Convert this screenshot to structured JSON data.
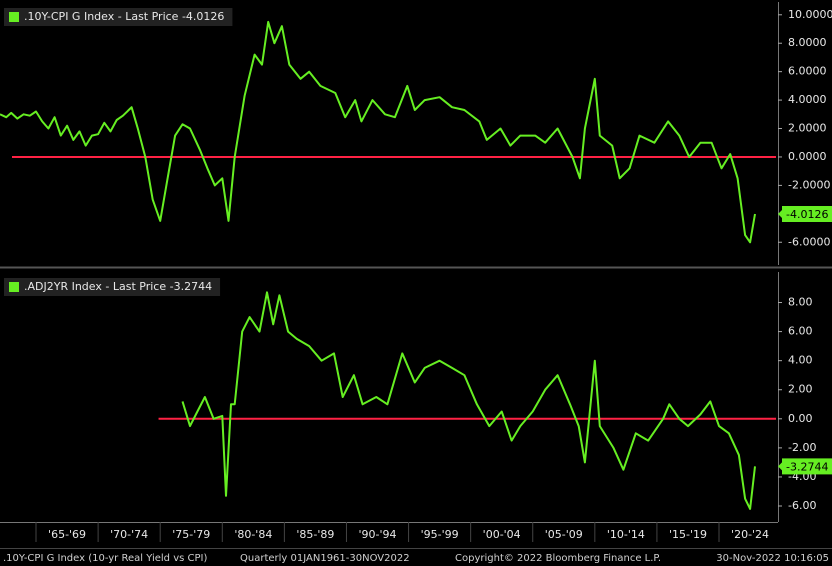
{
  "chart_data": [
    {
      "type": "line",
      "last_price_label": "- Last Price",
      "series": [
        {
          "name": ".10Y-CPI G Index",
          "color": "#66ee22",
          "x": [
            1962.1,
            1962.6,
            1963,
            1963.5,
            1964,
            1964.5,
            1965,
            1965.5,
            1966,
            1966.5,
            1967,
            1967.5,
            1968,
            1968.5,
            1969,
            1969.5,
            1970,
            1970.5,
            1971,
            1971.5,
            1972,
            1972.7,
            1973.2,
            1973.8,
            1974.4,
            1975,
            1975.6,
            1976.2,
            1976.8,
            1977.4,
            1978.2,
            1978.8,
            1979.4,
            1980,
            1980.5,
            1981,
            1981.8,
            1982.6,
            1983.2,
            1983.7,
            1984.2,
            1984.8,
            1985.4,
            1986.3,
            1987,
            1987.9,
            1989.1,
            1989.9,
            1990.7,
            1991.2,
            1992.1,
            1993.1,
            1993.9,
            1994.9,
            1995.5,
            1996.3,
            1997.5,
            1998.5,
            1999.5,
            2000.7,
            2001.3,
            2002.4,
            2003.2,
            2004,
            2005.2,
            2006,
            2007,
            2008.2,
            2008.8,
            2009.2,
            2010,
            2010.4,
            2011.4,
            2012,
            2012.8,
            2013.6,
            2014.8,
            2015.9,
            2016.8,
            2017.6,
            2018.5,
            2019.4,
            2020.2,
            2020.9,
            2021.5,
            2022.1,
            2022.5,
            2022.9
          ],
          "values": [
            3.0,
            2.8,
            3.1,
            2.7,
            3.0,
            2.9,
            3.2,
            2.5,
            2.0,
            2.8,
            1.5,
            2.2,
            1.2,
            1.8,
            0.8,
            1.5,
            1.6,
            2.4,
            1.8,
            2.6,
            2.9,
            3.5,
            2.0,
            0.0,
            -3.0,
            -4.5,
            -1.5,
            1.5,
            2.3,
            2.0,
            0.5,
            -0.8,
            -2.0,
            -1.5,
            -4.5,
            0.0,
            4.3,
            7.2,
            6.5,
            9.5,
            8.0,
            9.2,
            6.5,
            5.5,
            6.0,
            5.0,
            4.5,
            2.8,
            4.0,
            2.5,
            4.0,
            3.0,
            2.8,
            5.0,
            3.3,
            4.0,
            4.2,
            3.5,
            3.3,
            2.5,
            1.2,
            2.0,
            0.8,
            1.5,
            1.5,
            1.0,
            2.0,
            0.0,
            -1.5,
            2.0,
            5.5,
            1.5,
            0.8,
            -1.5,
            -0.8,
            1.5,
            1.0,
            2.5,
            1.5,
            0.0,
            1.0,
            1.0,
            -0.8,
            0.2,
            -1.5,
            -5.5,
            -6.0,
            -4.0126
          ]
        }
      ],
      "xlim": [
        1962.1,
        2024.75
      ],
      "ylim": [
        -7.6,
        10.9
      ],
      "yticks": [
        {
          "value": -6,
          "label": "-6.0000"
        },
        {
          "value": -4,
          "label": "-4.0000"
        },
        {
          "value": -2,
          "label": "-2.0000"
        },
        {
          "value": 0,
          "label": "0.0000"
        },
        {
          "value": 2,
          "label": "2.0000"
        },
        {
          "value": 4,
          "label": "4.0000"
        },
        {
          "value": 6,
          "label": "6.0000"
        },
        {
          "value": 8,
          "label": "8.0000"
        },
        {
          "value": 10,
          "label": "10.0000"
        }
      ],
      "reference_line": {
        "value": 0,
        "color": "#ff2244"
      }
    },
    {
      "type": "line",
      "last_price_label": "- Last Price",
      "series": [
        {
          "name": ".ADJ2YR Index",
          "color": "#66ee22",
          "x": [
            1976.8,
            1977.4,
            1978,
            1978.6,
            1979.3,
            1980,
            1980.3,
            1980.7,
            1981,
            1981.6,
            1982.2,
            1983,
            1983.6,
            1984.1,
            1984.6,
            1985.3,
            1986,
            1987,
            1988,
            1989,
            1989.7,
            1990.6,
            1991.3,
            1992.4,
            1993.3,
            1994.5,
            1995.5,
            1996.3,
            1997.5,
            1998.5,
            1999.5,
            2000.5,
            2001.5,
            2002.5,
            2003.3,
            2004,
            2005,
            2006,
            2007,
            2008,
            2008.7,
            2009.2,
            2010,
            2010.4,
            2011.5,
            2012.3,
            2013.3,
            2014.3,
            2015.5,
            2016,
            2016.8,
            2017.5,
            2018.5,
            2019.3,
            2020,
            2020.8,
            2021.6,
            2022.1,
            2022.5,
            2022.9
          ],
          "values": [
            1.2,
            -0.5,
            0.5,
            1.5,
            0.0,
            0.2,
            -5.3,
            1.0,
            1.0,
            6.0,
            7.0,
            6.0,
            8.7,
            6.5,
            8.5,
            6.0,
            5.5,
            5.0,
            4.0,
            4.5,
            1.5,
            3.0,
            1.0,
            1.5,
            1.0,
            4.5,
            2.5,
            3.5,
            4.0,
            3.5,
            3.0,
            1.0,
            -0.5,
            0.5,
            -1.5,
            -0.5,
            0.5,
            2.0,
            3.0,
            1.0,
            -0.5,
            -3.0,
            4.0,
            -0.5,
            -2.0,
            -3.5,
            -1.0,
            -1.5,
            0.0,
            1.0,
            0.0,
            -0.5,
            0.3,
            1.2,
            -0.5,
            -1.0,
            -2.5,
            -5.5,
            -6.2,
            -3.2744
          ]
        }
      ],
      "xlim": [
        1962.1,
        2024.75
      ],
      "ylim": [
        -7.1,
        10.1
      ],
      "yticks": [
        {
          "value": -6,
          "label": "-6.00"
        },
        {
          "value": -4,
          "label": "-4.00"
        },
        {
          "value": -2,
          "label": "-2.00"
        },
        {
          "value": 0,
          "label": "0.00"
        },
        {
          "value": 2,
          "label": "2.00"
        },
        {
          "value": 4,
          "label": "4.00"
        },
        {
          "value": 6,
          "label": "6.00"
        },
        {
          "value": 8,
          "label": "8.00"
        }
      ],
      "xticks": [
        {
          "value": 1965,
          "label": "'65-'69"
        },
        {
          "value": 1970,
          "label": "'70-'74"
        },
        {
          "value": 1975,
          "label": "'75-'79"
        },
        {
          "value": 1980,
          "label": "'80-'84"
        },
        {
          "value": 1985,
          "label": "'85-'89"
        },
        {
          "value": 1990,
          "label": "'90-'94"
        },
        {
          "value": 1995,
          "label": "'95-'99"
        },
        {
          "value": 2000,
          "label": "'00-'04"
        },
        {
          "value": 2005,
          "label": "'05-'09"
        },
        {
          "value": 2010,
          "label": "'10-'14"
        },
        {
          "value": 2015,
          "label": "'15-'19"
        },
        {
          "value": 2020,
          "label": "'20-'24"
        }
      ],
      "reference_line": {
        "value": 0,
        "color": "#ff2244"
      }
    }
  ],
  "footer": {
    "description": ".10Y-CPI G Index (10-yr Real Yield vs CPI)",
    "period": "Quarterly 01JAN1961-30NOV2022",
    "copyright": "Copyright© 2022 Bloomberg Finance L.P.",
    "timestamp": "30-Nov-2022 10:16:05"
  }
}
